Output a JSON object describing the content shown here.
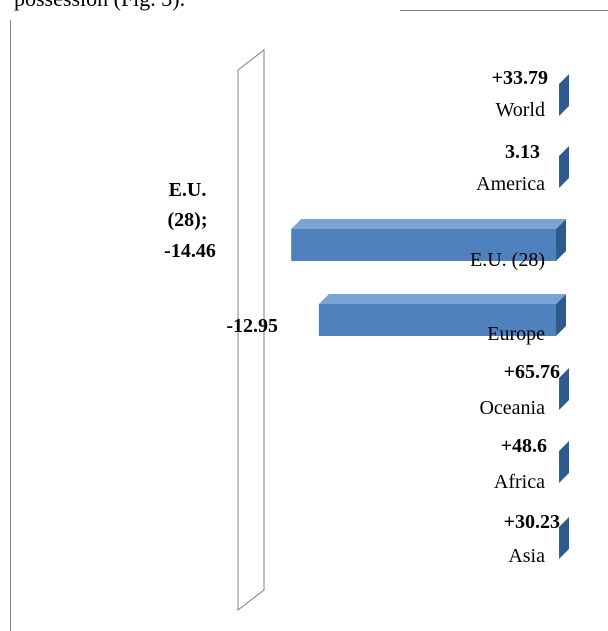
{
  "header_fragment": "possession (Fig. 3).",
  "chart_data": {
    "type": "bar",
    "orientation": "horizontal",
    "style": "3d",
    "categories": [
      "World",
      "America",
      "E.U. (28)",
      "Europe",
      "Oceania",
      "Africa",
      "Asia"
    ],
    "values": [
      33.79,
      3.13,
      -14.46,
      -12.95,
      65.76,
      48.6,
      30.23
    ],
    "value_labels": [
      "+33.79",
      "3.13",
      "-14.46",
      "-12.95",
      "+65.76",
      "+48.6",
      "+30.23"
    ],
    "eu_label_lines": [
      "E.U.",
      "(28);",
      "-14.46"
    ],
    "bar_color": "#4F81BD",
    "bar_top_color": "#7BA3D6",
    "bar_side_color": "#2F5A8E",
    "wall_color": "#808080",
    "xlim": [
      -16,
      1.2
    ],
    "legend": "none",
    "grid": false
  }
}
